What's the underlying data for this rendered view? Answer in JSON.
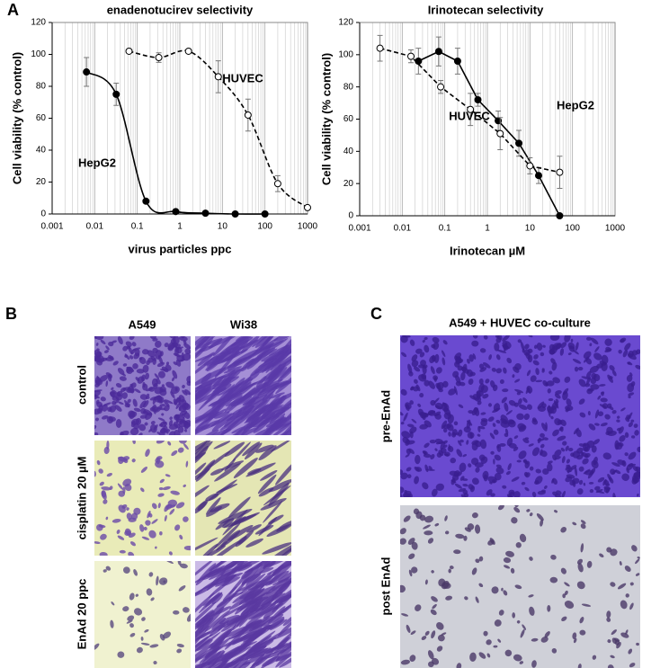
{
  "chart_data": [
    {
      "type": "line",
      "title": "enadenotucirev  selectivity",
      "x_label": "virus particles ppc",
      "y_label": "Cell viability (% control)",
      "log_x": true,
      "grid": true,
      "smooth": true,
      "xlim": [
        0.001,
        1000
      ],
      "xticks": [
        0.001,
        0.01,
        0.1,
        1,
        10,
        100,
        1000
      ],
      "ylim": [
        0,
        120
      ],
      "yticks": [
        0,
        20,
        40,
        60,
        80,
        100,
        120
      ],
      "series": [
        {
          "name": "HepG2",
          "color": "#000000",
          "marker": "filled",
          "dashed": false,
          "x": [
            0.0064,
            0.032,
            0.16,
            0.8,
            4,
            20,
            100
          ],
          "values": [
            89,
            75,
            8,
            1.5,
            0.5,
            0,
            0
          ],
          "errors": [
            9,
            7,
            0,
            0,
            0,
            0,
            0
          ]
        },
        {
          "name": "HUVEC",
          "color": "#000000",
          "marker": "open",
          "dashed": true,
          "x": [
            0.064,
            0.32,
            1.6,
            8,
            40,
            200,
            1000
          ],
          "values": [
            102,
            98,
            102,
            86,
            62,
            19,
            4
          ],
          "errors": [
            0,
            3,
            0,
            10,
            10,
            5,
            0
          ]
        }
      ]
    },
    {
      "type": "line",
      "title": "Irinotecan selectivity",
      "x_label": "Irinotecan µM",
      "y_label": "Cell viability (% control)",
      "log_x": true,
      "grid": true,
      "smooth": false,
      "xlim": [
        0.001,
        1000
      ],
      "xticks": [
        0.001,
        0.01,
        0.1,
        1,
        10,
        100,
        1000
      ],
      "ylim": [
        0,
        120
      ],
      "yticks": [
        0,
        20,
        40,
        60,
        80,
        100,
        120
      ],
      "series": [
        {
          "name": "HepG2",
          "color": "#000000",
          "marker": "filled",
          "dashed": false,
          "x": [
            0.024,
            0.072,
            0.2,
            0.6,
            1.8,
            5.5,
            16,
            50
          ],
          "values": [
            96,
            102,
            96,
            72,
            59,
            45,
            25,
            0
          ],
          "errors": [
            8,
            9,
            8,
            4,
            6,
            8,
            5,
            0
          ]
        },
        {
          "name": "HUVEC",
          "color": "#000000",
          "marker": "open",
          "dashed": true,
          "x": [
            0.003,
            0.016,
            0.08,
            0.4,
            2,
            10,
            50
          ],
          "values": [
            104,
            99,
            80,
            66,
            51,
            31,
            27
          ],
          "errors": [
            8,
            4,
            4,
            10,
            10,
            5,
            10
          ]
        }
      ]
    }
  ],
  "figure": {
    "panel_a": "A",
    "panel_b": "B",
    "panel_c": "C",
    "b_columns": [
      "A549",
      "Wi38"
    ],
    "b_rows": [
      "control",
      "cisplatin  20 µM",
      "EnAd 20 ppc"
    ],
    "c_title": "A549 + HUVEC co-culture",
    "c_rows": [
      "pre-EnAd",
      "post EnAd"
    ]
  }
}
